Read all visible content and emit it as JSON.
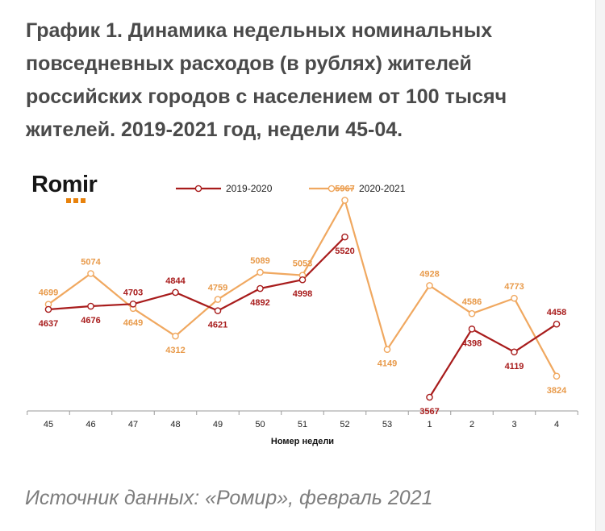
{
  "headline": "График 1. Динамика недельных номинальных повседневных расходов (в рублях) жителей российских городов с населением от 100 тысяч жителей. 2019-2021 год, недели 45-04.",
  "logo": {
    "text": "Romir",
    "accent_color": "#e8820c"
  },
  "source": "Источник данных: «Ромир», февраль 2021",
  "chart_data": {
    "type": "line",
    "title": "",
    "xlabel": "Номер недели",
    "ylabel": "",
    "ylim": [
      3400,
      6100
    ],
    "grid": false,
    "legend_position": "top",
    "categories": [
      "45",
      "46",
      "47",
      "48",
      "49",
      "50",
      "51",
      "52",
      "53",
      "1",
      "2",
      "3",
      "4"
    ],
    "series": [
      {
        "name": "2019-2020",
        "color": "#a81c1c",
        "values": [
          4637,
          4676,
          4703,
          4844,
          4621,
          4892,
          4998,
          5520,
          null,
          3567,
          4398,
          4119,
          4458
        ]
      },
      {
        "name": "2020-2021",
        "color": "#f0a860",
        "values": [
          4699,
          5074,
          4649,
          4312,
          4759,
          5089,
          5053,
          5967,
          4149,
          4928,
          4586,
          4773,
          3824
        ]
      }
    ],
    "label_colors": {
      "2019-2020": "#a81c1c",
      "2020-2021": "#e89a4a"
    },
    "axis_color": "#9a9a9a"
  }
}
